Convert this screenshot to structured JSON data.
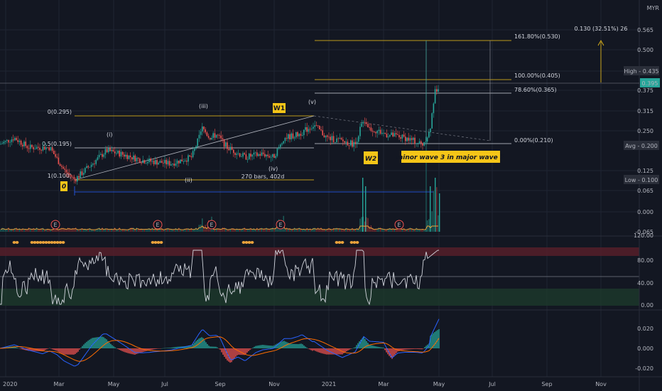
{
  "currency": "MYR",
  "measure_readout": "0.130 (32.51%) 26",
  "price_axis": {
    "ticks": [
      "0.565",
      "0.500",
      "0.435",
      "0.375",
      "0.315",
      "0.250",
      "0.200",
      "0.125",
      "0.065",
      "0.000",
      "-0.065"
    ],
    "badges": [
      {
        "label": "High",
        "value": "0.435"
      },
      {
        "label": "Last",
        "value": "0.395"
      },
      {
        "label": "Avg",
        "value": "0.200"
      },
      {
        "label": "Low",
        "value": "0.100"
      }
    ]
  },
  "rsi_axis": [
    "120.00",
    "80.00",
    "40.00",
    "0.00"
  ],
  "macd_axis": [
    "0.020",
    "0.000",
    "-0.020"
  ],
  "time_axis": [
    "2020",
    "Mar",
    "May",
    "Jul",
    "Sep",
    "Nov",
    "2021",
    "Mar",
    "May",
    "Jul",
    "Sep",
    "Nov"
  ],
  "fib_left": {
    "levels": [
      "0(0.295)",
      "0.5(0.195)",
      "1(0.100)"
    ]
  },
  "fib_right": {
    "levels": [
      "161.80%(0.530)",
      "100.00%(0.405)",
      "78.60%(0.365)",
      "0.00%(0.210)"
    ]
  },
  "waves": {
    "i": "(i)",
    "ii": "(ii)",
    "iii": "(iii)",
    "iv": "(iv)",
    "v": "(v)"
  },
  "boxes": {
    "zero": "0",
    "w1": "W1",
    "w2": "W2",
    "note": "minor wave 3 in major wave 3"
  },
  "range_label": "270 bars, 402d",
  "earnings_marker": "E",
  "colors": {
    "up": "#26a69a",
    "down": "#ef5350",
    "fib": "#f5c518",
    "ma": "#e9a23b",
    "rsi_line": "#d1d4dc",
    "macd": "#2962ff",
    "signal": "#ff6d00",
    "accent": "#2962ff"
  },
  "chart_data": [
    {
      "type": "candlestick",
      "title": "",
      "ylim": [
        -0.065,
        0.565
      ],
      "key_points": [
        {
          "x": "2020-01",
          "y": 0.21
        },
        {
          "x": "2020-03",
          "y": 0.11
        },
        {
          "x": "2020-05",
          "y": 0.19
        },
        {
          "x": "2020-07",
          "y": 0.18
        },
        {
          "x": "2020-08",
          "y": 0.295
        },
        {
          "x": "2020-10",
          "y": 0.195
        },
        {
          "x": "2020-12",
          "y": 0.295
        },
        {
          "x": "2021-01",
          "y": 0.22
        },
        {
          "x": "2021-02",
          "y": 0.32
        },
        {
          "x": "2021-03",
          "y": 0.23
        },
        {
          "x": "2021-04",
          "y": 0.21
        },
        {
          "x": "2021-05",
          "y": 0.435
        },
        {
          "x": "2021-05",
          "y": 0.395
        }
      ],
      "high": 0.435,
      "last": 0.395,
      "average": 0.2,
      "low": 0.1
    },
    {
      "type": "line",
      "title": "",
      "ylim": [
        0,
        120
      ],
      "series": [
        {
          "values": []
        }
      ],
      "reference_lines": [
        50
      ]
    },
    {
      "type": "bar",
      "title": "",
      "ylim": [
        -0.02,
        0.03
      ],
      "series": [
        {
          "values": []
        }
      ]
    }
  ]
}
